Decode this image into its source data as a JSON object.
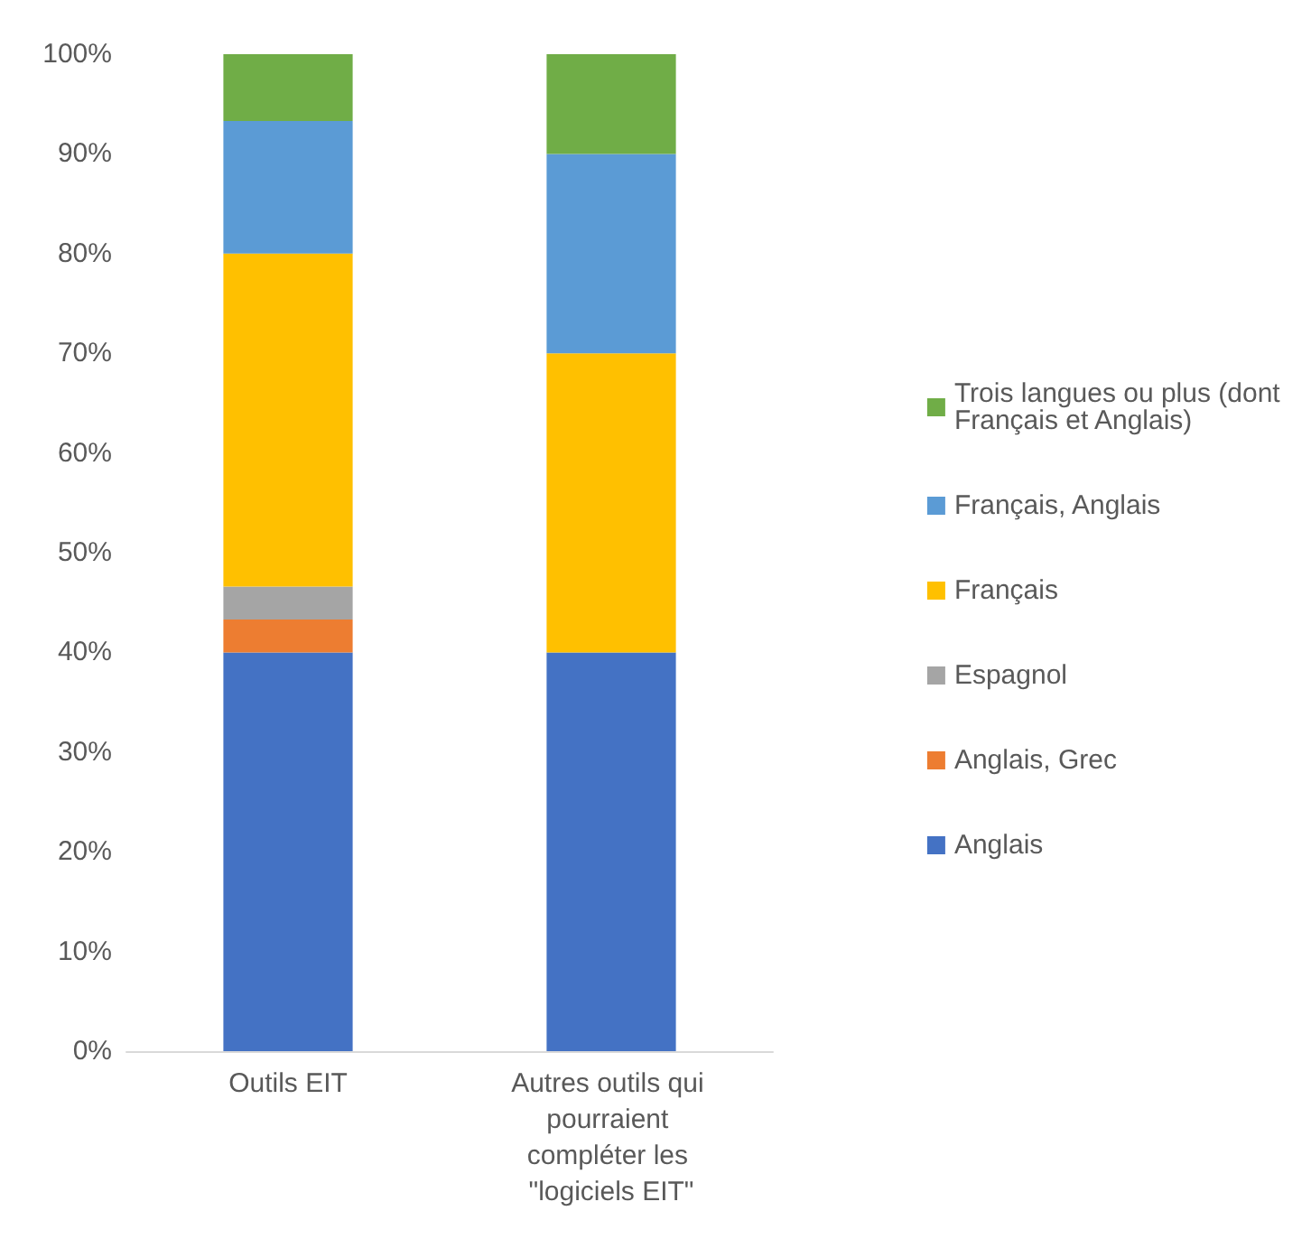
{
  "chart_data": {
    "type": "bar",
    "stacked": true,
    "categories": [
      "Outils EIT",
      "Autres outils qui pourraient compléter les \"logiciels EIT\""
    ],
    "series": [
      {
        "name": "Anglais",
        "color": "#4472c4",
        "values": [
          40,
          40
        ]
      },
      {
        "name": "Anglais, Grec",
        "color": "#ed7d31",
        "values": [
          3.3,
          0
        ]
      },
      {
        "name": "Espagnol",
        "color": "#a5a5a5",
        "values": [
          3.3,
          0
        ]
      },
      {
        "name": "Français",
        "color": "#ffc000",
        "values": [
          33.4,
          30
        ]
      },
      {
        "name": "Français, Anglais",
        "color": "#5b9bd5",
        "values": [
          13.3,
          20
        ]
      },
      {
        "name": "Trois langues ou plus (dont Français et Anglais)",
        "color": "#70ad47",
        "values": [
          6.7,
          10
        ]
      }
    ],
    "ylim": [
      0,
      100
    ],
    "yticks": [
      {
        "value": 0,
        "label": "0%"
      },
      {
        "value": 10,
        "label": "10%"
      },
      {
        "value": 20,
        "label": "20%"
      },
      {
        "value": 30,
        "label": "30%"
      },
      {
        "value": 40,
        "label": "40%"
      },
      {
        "value": 50,
        "label": "50%"
      },
      {
        "value": 60,
        "label": "60%"
      },
      {
        "value": 70,
        "label": "70%"
      },
      {
        "value": 80,
        "label": "80%"
      },
      {
        "value": 90,
        "label": "90%"
      },
      {
        "value": 100,
        "label": "100%"
      }
    ],
    "grid": false,
    "legend": "right"
  }
}
